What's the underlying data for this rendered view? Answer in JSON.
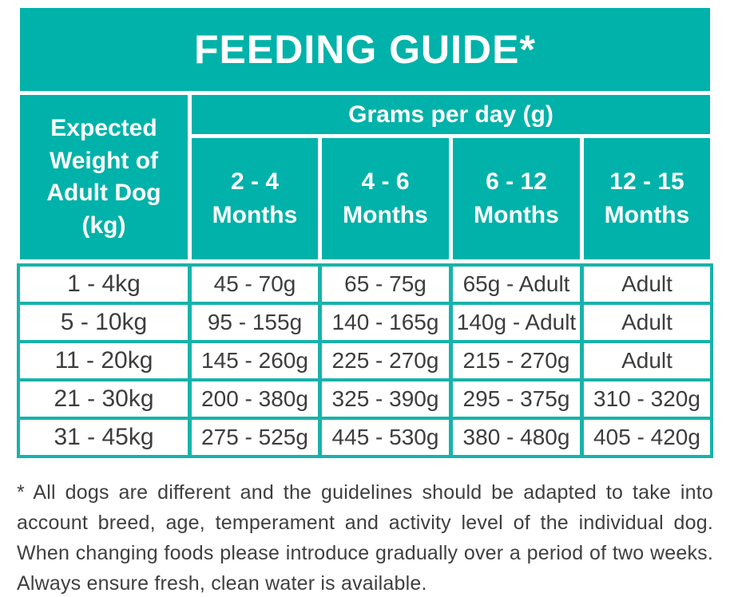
{
  "table": {
    "title": "FEEDING GUIDE*",
    "weight_header": "Expected Weight of Adult Dog (kg)",
    "grams_header": "Grams per day (g)",
    "month_headers": [
      "2 - 4 Months",
      "4 - 6 Months",
      "6 - 12 Months",
      "12 - 15 Months"
    ],
    "rows": [
      {
        "weight": "1 - 4kg",
        "values": [
          "45 - 70g",
          "65 - 75g",
          "65g - Adult",
          "Adult"
        ]
      },
      {
        "weight": "5 - 10kg",
        "values": [
          "95 - 155g",
          "140 - 165g",
          "140g - Adult",
          "Adult"
        ]
      },
      {
        "weight": "11 - 20kg",
        "values": [
          "145 - 260g",
          "225 - 270g",
          "215 - 270g",
          "Adult"
        ]
      },
      {
        "weight": "21 - 30kg",
        "values": [
          "200 - 380g",
          "325 - 390g",
          "295 - 375g",
          "310 - 320g"
        ]
      },
      {
        "weight": "31 - 45kg",
        "values": [
          "275 - 525g",
          "445 - 530g",
          "380 - 480g",
          "405 - 420g"
        ]
      }
    ]
  },
  "footnote": {
    "lines": [
      "* All dogs are different and the guidelines should be adapted to take into",
      "account breed, age, temperament and activity level of the individual dog.",
      "When changing foods please introduce gradually over a period of two weeks.",
      "Always ensure fresh, clean water is available."
    ]
  },
  "colors": {
    "teal": "#00b2a9",
    "data_border_teal": "#17b3aa",
    "text_dark": "#3d3d3d",
    "white": "#ffffff"
  }
}
